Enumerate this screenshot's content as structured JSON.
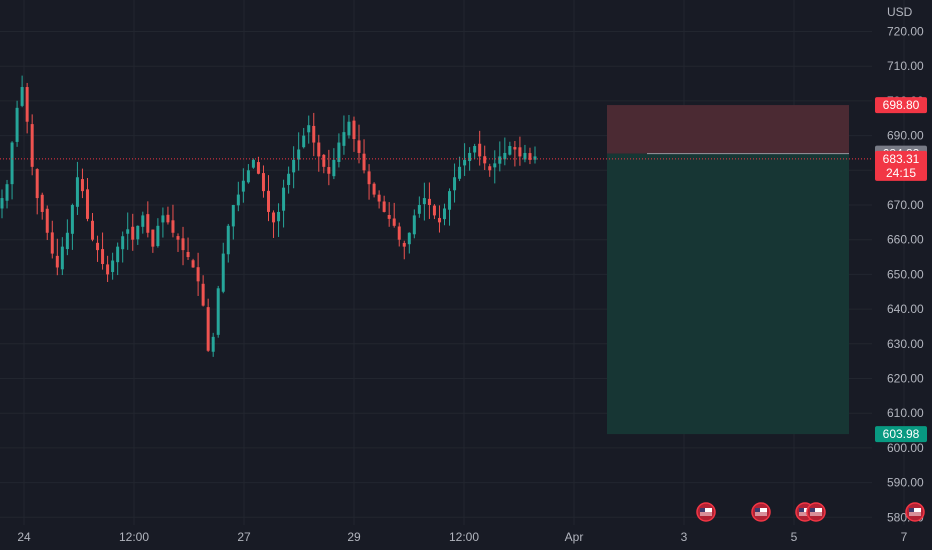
{
  "chart_data": {
    "type": "candlestick",
    "currency": "USD",
    "ylim": [
      575,
      725
    ],
    "y_ticks": [
      720,
      710,
      700,
      690,
      680,
      670,
      660,
      650,
      640,
      630,
      620,
      610,
      600,
      590,
      580
    ],
    "y_tick_labels": [
      "720.00",
      "710.00",
      "700.00",
      "690.00",
      "680.00",
      "670.00",
      "660.00",
      "650.00",
      "640.00",
      "630.00",
      "620.00",
      "610.00",
      "600.00",
      "590.00",
      "580.00"
    ],
    "x_ticks": [
      {
        "label": "24",
        "pos": 0.0
      },
      {
        "label": "12:00",
        "pos": 0.5
      },
      {
        "label": "27",
        "pos": 1.0
      },
      {
        "label": "29",
        "pos": 1.5
      },
      {
        "label": "12:00",
        "pos": 2.0
      },
      {
        "label": "Apr",
        "pos": 2.5
      },
      {
        "label": "3",
        "pos": 3.0
      },
      {
        "label": "5",
        "pos": 3.5
      },
      {
        "label": "7",
        "pos": 4.0
      }
    ],
    "close_series": [
      672,
      676,
      688,
      698,
      704,
      694,
      681,
      672,
      668,
      662,
      656,
      652,
      658,
      662,
      670,
      678,
      674,
      666,
      660,
      657,
      653,
      650,
      654,
      658,
      661,
      663,
      660,
      664,
      667,
      662,
      658,
      664,
      667,
      665,
      662,
      660,
      657,
      655,
      652,
      648,
      641,
      628,
      632,
      646,
      656,
      664,
      670,
      673,
      677,
      680,
      683,
      679,
      674,
      668,
      665,
      668,
      675,
      679,
      683,
      686,
      690,
      693,
      688,
      684,
      681,
      679,
      683,
      688,
      691,
      694,
      689,
      685,
      680,
      676,
      673,
      671,
      668,
      666,
      664,
      660,
      658,
      662,
      667,
      670,
      672,
      670,
      667,
      665,
      669,
      674,
      678,
      681,
      683,
      685,
      687,
      684,
      682,
      680,
      682,
      684,
      685,
      687,
      686,
      684,
      685,
      683,
      684
    ],
    "last_bar": {
      "open": 684.82,
      "close": 683.31
    },
    "labels": {
      "stop": "698.80",
      "prev_close": "684.82",
      "last": "683.31",
      "countdown": "24:15",
      "target": "603.98"
    },
    "position": {
      "entry": 684.82,
      "stop": 698.8,
      "target": 603.98,
      "x_start": 2.65,
      "x_end": 3.75
    },
    "event_markers": [
      3.1,
      3.35,
      3.55,
      3.6,
      4.05
    ],
    "colors": {
      "up": "#26a69a",
      "down": "#ef5350",
      "stop_zone": "#4b2a33",
      "target_zone": "#173634",
      "stop_label": "#f23645",
      "target_label": "#089981",
      "prev_label": "#787b86",
      "last_line": "#f23645",
      "grid": "#22262f",
      "background": "#181b25"
    }
  }
}
